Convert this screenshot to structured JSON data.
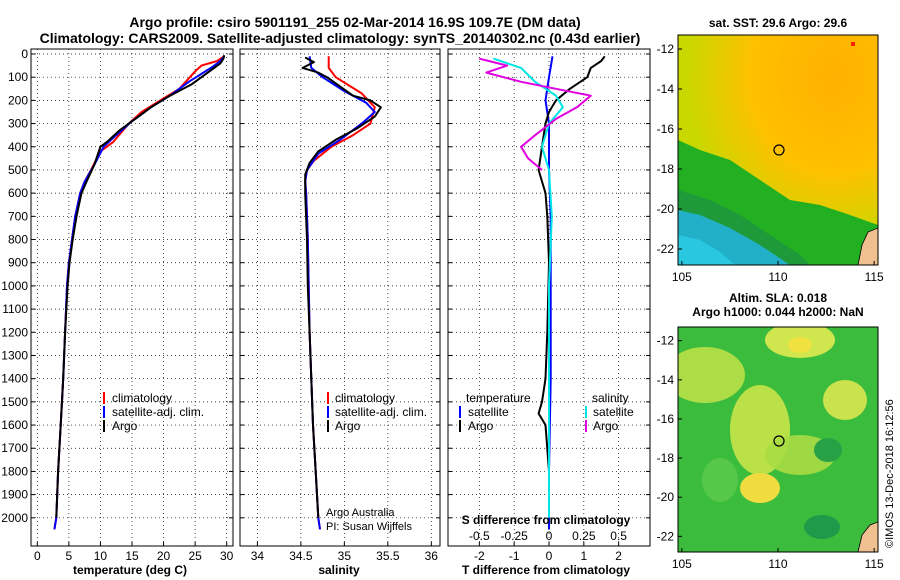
{
  "header": {
    "title_line1": "Argo profile: csiro 5901191_255 02-Mar-2014 16.9S 109.7E (DM data)",
    "title_line2": "Climatology: CARS2009. Satellite-adjusted climatology: synTS_20140302.nc (0.43d earlier)"
  },
  "colors": {
    "climatology": "#ff0000",
    "satellite": "#0000ff",
    "argo": "#000000",
    "sat_salinity": "#00e5e5",
    "argo_salinity": "#e000e0"
  },
  "depth_axis": {
    "ticks": [
      "0",
      "100",
      "200",
      "300",
      "400",
      "500",
      "600",
      "700",
      "800",
      "900",
      "1000",
      "1100",
      "1200",
      "1300",
      "1400",
      "1500",
      "1600",
      "1700",
      "1800",
      "1900",
      "2000"
    ]
  },
  "temperature_panel": {
    "xlabel": "temperature (deg C)",
    "xticks": [
      "0",
      "5",
      "10",
      "15",
      "20",
      "25",
      "30"
    ],
    "legend": [
      "climatology",
      "satellite-adj. clim.",
      "Argo"
    ]
  },
  "salinity_panel": {
    "xlabel": "salinity",
    "xticks": [
      "34",
      "34.5",
      "35",
      "35.5",
      "36"
    ],
    "legend": [
      "climatology",
      "satellite-adj. clim.",
      "Argo"
    ],
    "credit_line1": "Argo Australia",
    "credit_line2": "PI: Susan Wijffels"
  },
  "difference_panel": {
    "xlabel": "T difference from climatology",
    "xticks": [
      "-2",
      "-1",
      "0",
      "1",
      "2"
    ],
    "top_label": "S difference from climatology",
    "top_ticks": [
      "-0.5",
      "-0.25",
      "0",
      "0.25",
      "0.5"
    ],
    "legend_left_title": "temperature",
    "legend_left": [
      "satellite",
      "Argo"
    ],
    "legend_right_title": "salinity",
    "legend_right": [
      "satellite",
      "Argo"
    ]
  },
  "sst_map": {
    "title": "sat. SST: 29.6 Argo: 29.6",
    "xticks": [
      "105",
      "110",
      "115"
    ],
    "yticks": [
      "-12",
      "-14",
      "-16",
      "-18",
      "-20",
      "-22"
    ]
  },
  "sla_map": {
    "title_line1": "Altim. SLA: 0.018",
    "title_line2": "Argo h1000: 0.044 h2000: NaN",
    "xticks": [
      "105",
      "110",
      "115"
    ],
    "yticks": [
      "-12",
      "-14",
      "-16",
      "-18",
      "-20",
      "-22"
    ]
  },
  "footer": {
    "credit": "©IMOS 13-Dec-2018 16:12:56"
  },
  "chart_data": [
    {
      "type": "line",
      "xlabel": "temperature (deg C)",
      "ylabel": "",
      "xlim": [
        -1,
        31
      ],
      "ylim": [
        2100,
        0
      ],
      "series": [
        {
          "name": "climatology",
          "points": [
            [
              29.6,
              10
            ],
            [
              28.5,
              30
            ],
            [
              26.0,
              50
            ],
            [
              25.0,
              75
            ],
            [
              22.5,
              150
            ],
            [
              19.5,
              200
            ],
            [
              16.5,
              250
            ],
            [
              14.5,
              300
            ],
            [
              12.0,
              380
            ],
            [
              10.0,
              420
            ],
            [
              8.5,
              500
            ],
            [
              7.5,
              550
            ],
            [
              6.8,
              600
            ],
            [
              6.0,
              700
            ],
            [
              5.5,
              800
            ],
            [
              5.0,
              900
            ],
            [
              4.7,
              1000
            ],
            [
              4.4,
              1200
            ],
            [
              4.1,
              1400
            ],
            [
              3.7,
              1600
            ],
            [
              3.3,
              1800
            ],
            [
              3.0,
              2000
            ],
            [
              2.7,
              2050
            ]
          ]
        },
        {
          "name": "satellite-adj. clim.",
          "points": [
            [
              29.6,
              10
            ],
            [
              29.0,
              30
            ],
            [
              27.5,
              60
            ],
            [
              24.0,
              120
            ],
            [
              21.0,
              180
            ],
            [
              18.0,
              230
            ],
            [
              15.0,
              290
            ],
            [
              12.5,
              350
            ],
            [
              10.5,
              400
            ],
            [
              9.0,
              480
            ],
            [
              7.5,
              550
            ],
            [
              6.8,
              600
            ],
            [
              6.0,
              700
            ],
            [
              5.5,
              800
            ],
            [
              5.0,
              900
            ],
            [
              4.7,
              1000
            ],
            [
              4.4,
              1200
            ],
            [
              4.1,
              1400
            ],
            [
              3.7,
              1600
            ],
            [
              3.3,
              1800
            ],
            [
              3.0,
              2000
            ],
            [
              2.7,
              2050
            ]
          ]
        },
        {
          "name": "Argo",
          "points": [
            [
              29.6,
              5
            ],
            [
              29.5,
              20
            ],
            [
              29.0,
              40
            ],
            [
              27.0,
              80
            ],
            [
              24.5,
              130
            ],
            [
              21.0,
              180
            ],
            [
              18.0,
              230
            ],
            [
              15.5,
              280
            ],
            [
              13.0,
              330
            ],
            [
              11.0,
              380
            ],
            [
              10.0,
              400
            ],
            [
              9.0,
              480
            ],
            [
              7.8,
              550
            ],
            [
              7.0,
              600
            ],
            [
              6.2,
              700
            ],
            [
              5.6,
              800
            ],
            [
              5.1,
              900
            ],
            [
              4.8,
              1000
            ],
            [
              4.4,
              1200
            ],
            [
              4.1,
              1400
            ],
            [
              3.7,
              1600
            ],
            [
              3.3,
              1800
            ],
            [
              3.0,
              2000
            ]
          ]
        }
      ]
    },
    {
      "type": "line",
      "xlabel": "salinity",
      "ylabel": "",
      "xlim": [
        33.8,
        36.1
      ],
      "ylim": [
        2100,
        0
      ],
      "series": [
        {
          "name": "climatology",
          "points": [
            [
              34.82,
              10
            ],
            [
              34.82,
              60
            ],
            [
              34.9,
              100
            ],
            [
              35.2,
              170
            ],
            [
              35.35,
              230
            ],
            [
              35.3,
              300
            ],
            [
              35.1,
              350
            ],
            [
              34.85,
              400
            ],
            [
              34.65,
              460
            ],
            [
              34.57,
              500
            ],
            [
              34.55,
              550
            ],
            [
              34.56,
              600
            ],
            [
              34.57,
              700
            ],
            [
              34.58,
              800
            ],
            [
              34.59,
              1000
            ],
            [
              34.6,
              1200
            ],
            [
              34.62,
              1400
            ],
            [
              34.64,
              1600
            ],
            [
              34.67,
              1800
            ],
            [
              34.7,
              2000
            ],
            [
              34.72,
              2050
            ]
          ]
        },
        {
          "name": "satellite-adj. clim.",
          "points": [
            [
              34.6,
              10
            ],
            [
              34.62,
              60
            ],
            [
              34.75,
              100
            ],
            [
              35.0,
              160
            ],
            [
              35.25,
              210
            ],
            [
              35.35,
              250
            ],
            [
              35.2,
              300
            ],
            [
              34.95,
              370
            ],
            [
              34.7,
              430
            ],
            [
              34.57,
              500
            ],
            [
              34.55,
              550
            ],
            [
              34.56,
              600
            ],
            [
              34.57,
              700
            ],
            [
              34.58,
              800
            ],
            [
              34.59,
              1000
            ],
            [
              34.6,
              1200
            ],
            [
              34.62,
              1400
            ],
            [
              34.64,
              1600
            ],
            [
              34.67,
              1800
            ],
            [
              34.7,
              2000
            ],
            [
              34.72,
              2050
            ]
          ]
        },
        {
          "name": "Argo",
          "points": [
            [
              34.55,
              15
            ],
            [
              34.65,
              35
            ],
            [
              34.52,
              60
            ],
            [
              34.7,
              80
            ],
            [
              34.8,
              100
            ],
            [
              35.1,
              180
            ],
            [
              35.3,
              200
            ],
            [
              35.42,
              230
            ],
            [
              35.35,
              270
            ],
            [
              35.15,
              320
            ],
            [
              34.9,
              370
            ],
            [
              34.7,
              420
            ],
            [
              34.6,
              470
            ],
            [
              34.55,
              520
            ],
            [
              34.55,
              600
            ],
            [
              34.56,
              700
            ],
            [
              34.57,
              800
            ],
            [
              34.58,
              1000
            ],
            [
              34.6,
              1200
            ],
            [
              34.62,
              1400
            ],
            [
              34.64,
              1600
            ],
            [
              34.67,
              1800
            ],
            [
              34.7,
              2000
            ]
          ]
        }
      ]
    },
    {
      "type": "line",
      "xlabel": "T difference from climatology",
      "ylabel": "",
      "xlim": [
        -2.9,
        2.9
      ],
      "ylim": [
        2100,
        0
      ],
      "series": [
        {
          "name": "temperature satellite",
          "points": [
            [
              0.1,
              10
            ],
            [
              0.0,
              100
            ],
            [
              -0.1,
              200
            ],
            [
              0.0,
              300
            ],
            [
              0.0,
              500
            ],
            [
              0.05,
              700
            ],
            [
              0.05,
              1000
            ],
            [
              0.05,
              1400
            ],
            [
              0.0,
              1800
            ],
            [
              0.0,
              2050
            ]
          ]
        },
        {
          "name": "temperature Argo",
          "points": [
            [
              1.6,
              10
            ],
            [
              1.5,
              30
            ],
            [
              1.2,
              60
            ],
            [
              1.1,
              100
            ],
            [
              0.6,
              150
            ],
            [
              0.2,
              200
            ],
            [
              0.0,
              250
            ],
            [
              -0.1,
              300
            ],
            [
              -0.2,
              400
            ],
            [
              -0.3,
              500
            ],
            [
              -0.2,
              550
            ],
            [
              -0.1,
              600
            ],
            [
              -0.05,
              700
            ],
            [
              0.0,
              900
            ],
            [
              -0.05,
              1200
            ],
            [
              -0.1,
              1400
            ],
            [
              -0.2,
              1500
            ],
            [
              -0.3,
              1550
            ],
            [
              -0.1,
              1600
            ],
            [
              0.0,
              1800
            ],
            [
              0.0,
              2000
            ]
          ]
        },
        {
          "name": "salinity satellite",
          "points": [
            [
              -0.4,
              20
            ],
            [
              -0.2,
              60
            ],
            [
              -0.1,
              120
            ],
            [
              0.05,
              180
            ],
            [
              0.1,
              230
            ],
            [
              0.0,
              300
            ],
            [
              -0.05,
              400
            ],
            [
              0.0,
              500
            ],
            [
              0.02,
              700
            ],
            [
              0.0,
              1000
            ],
            [
              0.0,
              1500
            ],
            [
              0.0,
              2000
            ]
          ]
        },
        {
          "name": "salinity Argo",
          "points": [
            [
              -0.5,
              20
            ],
            [
              -0.3,
              50
            ],
            [
              -0.45,
              80
            ],
            [
              -0.2,
              120
            ],
            [
              0.05,
              150
            ],
            [
              0.3,
              180
            ],
            [
              0.2,
              230
            ],
            [
              0.05,
              280
            ],
            [
              -0.1,
              350
            ],
            [
              -0.2,
              400
            ],
            [
              -0.15,
              450
            ],
            [
              -0.05,
              500
            ]
          ]
        }
      ]
    }
  ]
}
